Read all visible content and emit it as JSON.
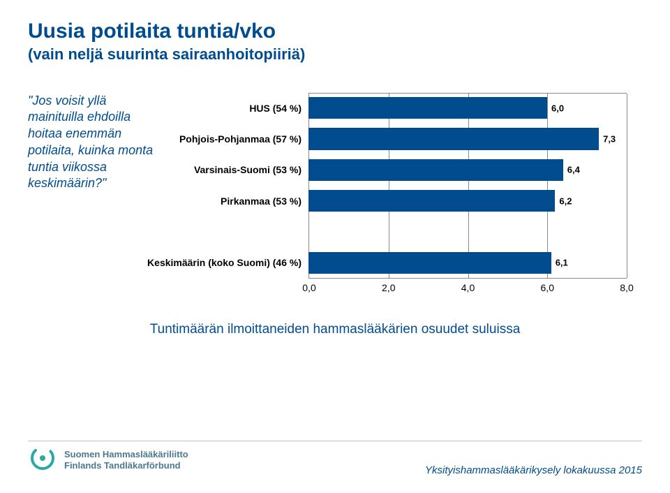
{
  "title": "Uusia potilaita tuntia/vko",
  "subtitle": "(vain neljä suurinta sairaanhoitopiiriä)",
  "question": "\"Jos voisit yllä mainituilla ehdoilla hoitaa enemmän potilaita, kuinka monta tuntia viikossa keskimäärin?\"",
  "chart": {
    "type": "bar",
    "orientation": "horizontal",
    "xlim": [
      0.0,
      8.0
    ],
    "xticks": [
      0.0,
      2.0,
      4.0,
      6.0,
      8.0
    ],
    "xtick_labels": [
      "0,0",
      "2,0",
      "4,0",
      "6,0",
      "8,0"
    ],
    "background_color": "#ffffff",
    "grid_color": "#888888",
    "bar_color": "#004c8f",
    "label_fontsize": 14,
    "value_fontsize": 13,
    "bar_group_height_pct": 70,
    "groups": [
      {
        "label": "HUS (54 %)",
        "values": [
          "6,0"
        ],
        "raw": [
          6.0
        ]
      },
      {
        "label": "Pohjois-Pohjanmaa (57 %)",
        "values": [
          "7,3"
        ],
        "raw": [
          7.3
        ]
      },
      {
        "label": "Varsinais-Suomi (53 %)",
        "values": [
          "6,4"
        ],
        "raw": [
          6.4
        ]
      },
      {
        "label": "Pirkanmaa (53 %)",
        "values": [
          "6,2"
        ],
        "raw": [
          6.2
        ]
      },
      {
        "label": "Keskimäärin (koko Suomi) (46 %)",
        "values": [
          "6,1"
        ],
        "raw": [
          6.1
        ]
      }
    ],
    "gap_after_index": 3,
    "gap_size_slots": 1
  },
  "footnote": "Tuntimäärän ilmoittaneiden hammaslääkärien osuudet suluissa",
  "footer": {
    "logo_line1": "Suomen Hammaslääkäriliitto",
    "logo_line2": "Finlands Tandläkarförbund",
    "source": "Yksityishammaslääkärikysely lokakuussa 2015"
  },
  "colors": {
    "title": "#004c8f",
    "question": "#004c8f",
    "footnote": "#004c8f",
    "source": "#004c8f",
    "logo_text": "#4b7a8f",
    "bar": "#004c8f",
    "grid": "#888888",
    "divider": "#b9c3c9"
  }
}
